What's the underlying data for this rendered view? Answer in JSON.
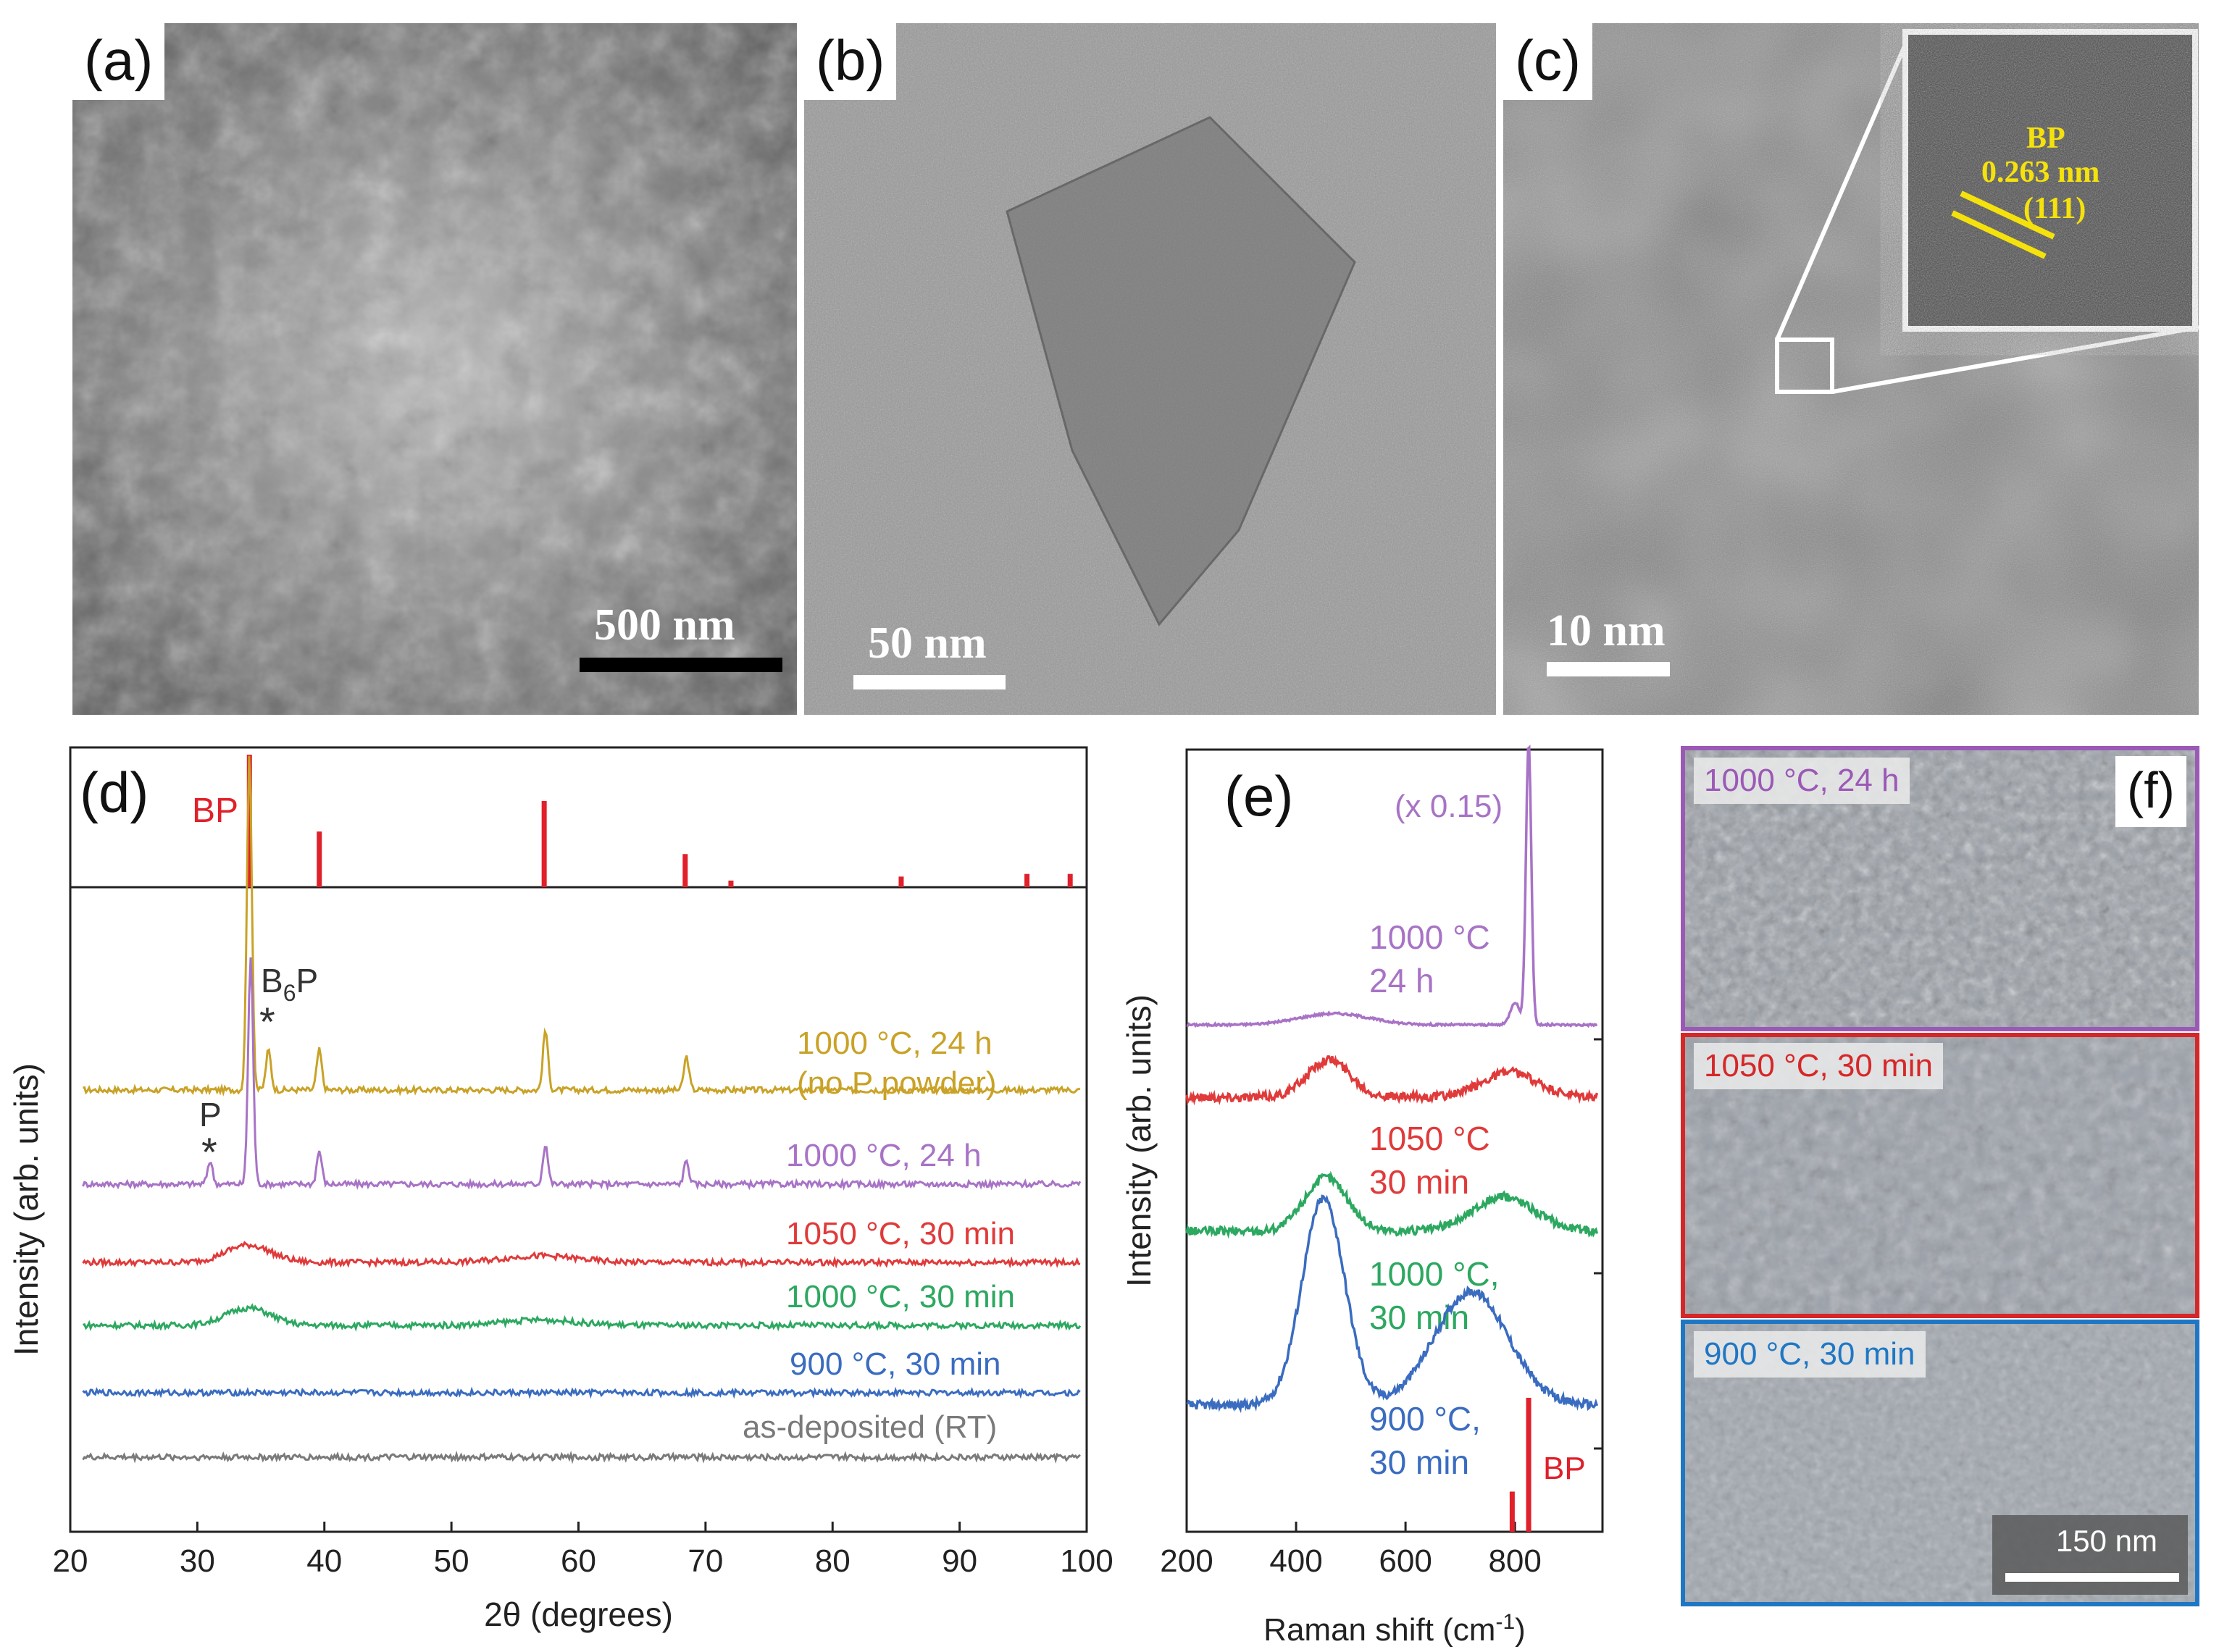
{
  "panels": {
    "a": {
      "label": "(a)",
      "scale_bar": "500 nm"
    },
    "b": {
      "label": "(b)",
      "scale_bar": "50 nm"
    },
    "c": {
      "label": "(c)",
      "scale_bar": "10 nm",
      "inset": {
        "phase": "BP",
        "spacing": "0.263 nm",
        "plane": "(111)"
      }
    },
    "d": {
      "label": "(d)"
    },
    "e": {
      "label": "(e)"
    },
    "f": {
      "label": "(f)",
      "scale_bar": "150 nm",
      "images": [
        {
          "condition": "1000 °C, 24 h",
          "color": "#9b59b6"
        },
        {
          "condition": "1050 °C, 30 min",
          "color": "#d62728"
        },
        {
          "condition": "900 °C, 30 min",
          "color": "#1f77c4"
        }
      ]
    }
  },
  "colors": {
    "gold": "#c9a227",
    "purple": "#a873c6",
    "red": "#e03a3a",
    "green": "#2ca860",
    "blue": "#3a6cc0",
    "gray": "#7a7a7a",
    "ref": "#e0202a"
  },
  "chart_data": [
    {
      "type": "line",
      "panel": "d",
      "xlabel": "2θ (degrees)",
      "ylabel": "Intensity (arb. units)",
      "xlim": [
        20,
        100
      ],
      "xticks": [
        20,
        30,
        40,
        50,
        60,
        70,
        80,
        90,
        100
      ],
      "reference": {
        "name": "BP",
        "peaks": [
          {
            "x": 34.1,
            "h": 1.0
          },
          {
            "x": 39.6,
            "h": 0.42
          },
          {
            "x": 57.3,
            "h": 0.65
          },
          {
            "x": 68.4,
            "h": 0.25
          },
          {
            "x": 72.0,
            "h": 0.05
          },
          {
            "x": 85.4,
            "h": 0.08
          },
          {
            "x": 95.3,
            "h": 0.1
          },
          {
            "x": 98.7,
            "h": 0.1
          }
        ]
      },
      "series": [
        {
          "name": "1000 °C, 24 h (no P powder)",
          "label_lines": [
            "1000 °C, 24 h",
            "(no P powder)"
          ],
          "color_key": "gold",
          "peaks": [
            {
              "x": 34.1,
              "h": 1.0
            },
            {
              "x": 35.6,
              "h": 0.12
            },
            {
              "x": 39.6,
              "h": 0.12
            },
            {
              "x": 57.4,
              "h": 0.18
            },
            {
              "x": 68.5,
              "h": 0.1
            }
          ]
        },
        {
          "name": "1000 °C, 24 h",
          "label_lines": [
            "1000 °C, 24 h"
          ],
          "color_key": "purple",
          "peaks": [
            {
              "x": 31.0,
              "h": 0.07
            },
            {
              "x": 34.2,
              "h": 0.68
            },
            {
              "x": 39.6,
              "h": 0.1
            },
            {
              "x": 57.4,
              "h": 0.12
            },
            {
              "x": 68.5,
              "h": 0.07
            }
          ]
        },
        {
          "name": "1050 °C, 30 min",
          "label_lines": [
            "1050 °C, 30 min"
          ],
          "color_key": "red",
          "humps": [
            {
              "x": 34.0,
              "h": 0.08,
              "w": 2.5
            },
            {
              "x": 57.0,
              "h": 0.03,
              "w": 4
            }
          ]
        },
        {
          "name": "1000 °C, 30 min",
          "label_lines": [
            "1000 °C, 30 min"
          ],
          "color_key": "green",
          "humps": [
            {
              "x": 34.0,
              "h": 0.08,
              "w": 2.5
            },
            {
              "x": 57.0,
              "h": 0.025,
              "w": 4
            }
          ]
        },
        {
          "name": "900 °C, 30 min",
          "label_lines": [
            "900 °C, 30 min"
          ],
          "color_key": "blue",
          "humps": []
        },
        {
          "name": "as-deposited (RT)",
          "label_lines": [
            "as-deposited (RT)"
          ],
          "color_key": "gray",
          "humps": []
        }
      ],
      "annotations": [
        {
          "text": "BP",
          "where": "reference panel, left of 34°"
        },
        {
          "text": "B6P *",
          "x": 35.6,
          "series": "1000 °C, 24 h (no P powder)"
        },
        {
          "text": "P *",
          "x": 31.0,
          "series": "1000 °C, 24 h"
        }
      ]
    },
    {
      "type": "line",
      "panel": "e",
      "xlabel": "Raman shift (cm-1)",
      "ylabel": "Intensity (arb. units)",
      "xlim": [
        200,
        960
      ],
      "xticks": [
        200,
        400,
        600,
        800
      ],
      "reference": {
        "name": "BP",
        "peaks": [
          {
            "x": 795,
            "h": 0.3
          },
          {
            "x": 825,
            "h": 1.0
          }
        ]
      },
      "series": [
        {
          "name": "1000 °C 24 h",
          "label_lines": [
            "1000 °C",
            "24 h"
          ],
          "color_key": "purple",
          "scale_note": "(x 0.15)",
          "features": [
            {
              "x": 470,
              "h": 0.04,
              "w": 90
            },
            {
              "x": 800,
              "h": 0.08,
              "w": 12
            },
            {
              "x": 825,
              "h": 1.0,
              "w": 7
            }
          ]
        },
        {
          "name": "1050 °C 30 min",
          "label_lines": [
            "1050 °C",
            "30 min"
          ],
          "color_key": "red",
          "features": [
            {
              "x": 460,
              "h": 0.45,
              "w": 55
            },
            {
              "x": 790,
              "h": 0.3,
              "w": 70
            }
          ]
        },
        {
          "name": "1000 °C, 30 min",
          "label_lines": [
            "1000 °C,",
            "30 min"
          ],
          "color_key": "green",
          "features": [
            {
              "x": 455,
              "h": 0.55,
              "w": 55
            },
            {
              "x": 780,
              "h": 0.35,
              "w": 80
            }
          ]
        },
        {
          "name": "900 °C, 30 min",
          "label_lines": [
            "900 °C,",
            "30 min"
          ],
          "color_key": "blue",
          "features": [
            {
              "x": 450,
              "h": 1.0,
              "w": 55
            },
            {
              "x": 720,
              "h": 0.55,
              "w": 95
            }
          ]
        }
      ]
    }
  ]
}
